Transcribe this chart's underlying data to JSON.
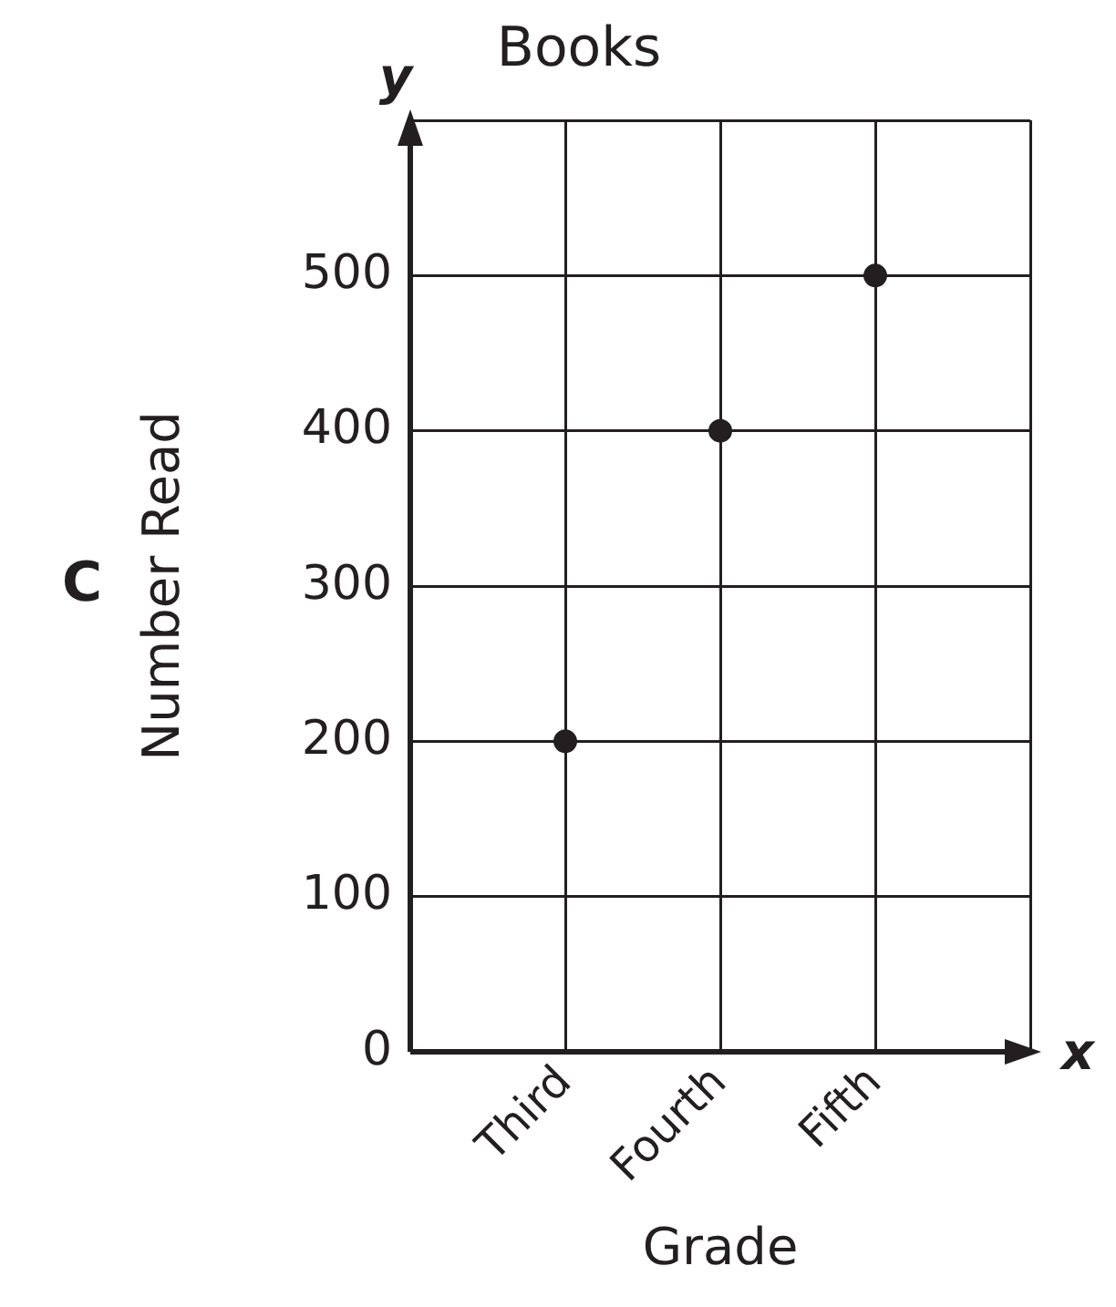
{
  "chart_data": {
    "type": "scatter",
    "title": "Books",
    "xlabel": "Grade",
    "ylabel": "Number Read",
    "categories": [
      "Third",
      "Fourth",
      "Fifth"
    ],
    "values": [
      200,
      400,
      500
    ],
    "color": "#231f20",
    "marker": "circle",
    "ylim": [
      0,
      600
    ],
    "yticks": [
      0,
      100,
      200,
      300,
      400,
      500,
      {
        "value": 600,
        "label": null
      }
    ],
    "grid": true,
    "annotations": [
      "C",
      "y",
      "x"
    ]
  }
}
